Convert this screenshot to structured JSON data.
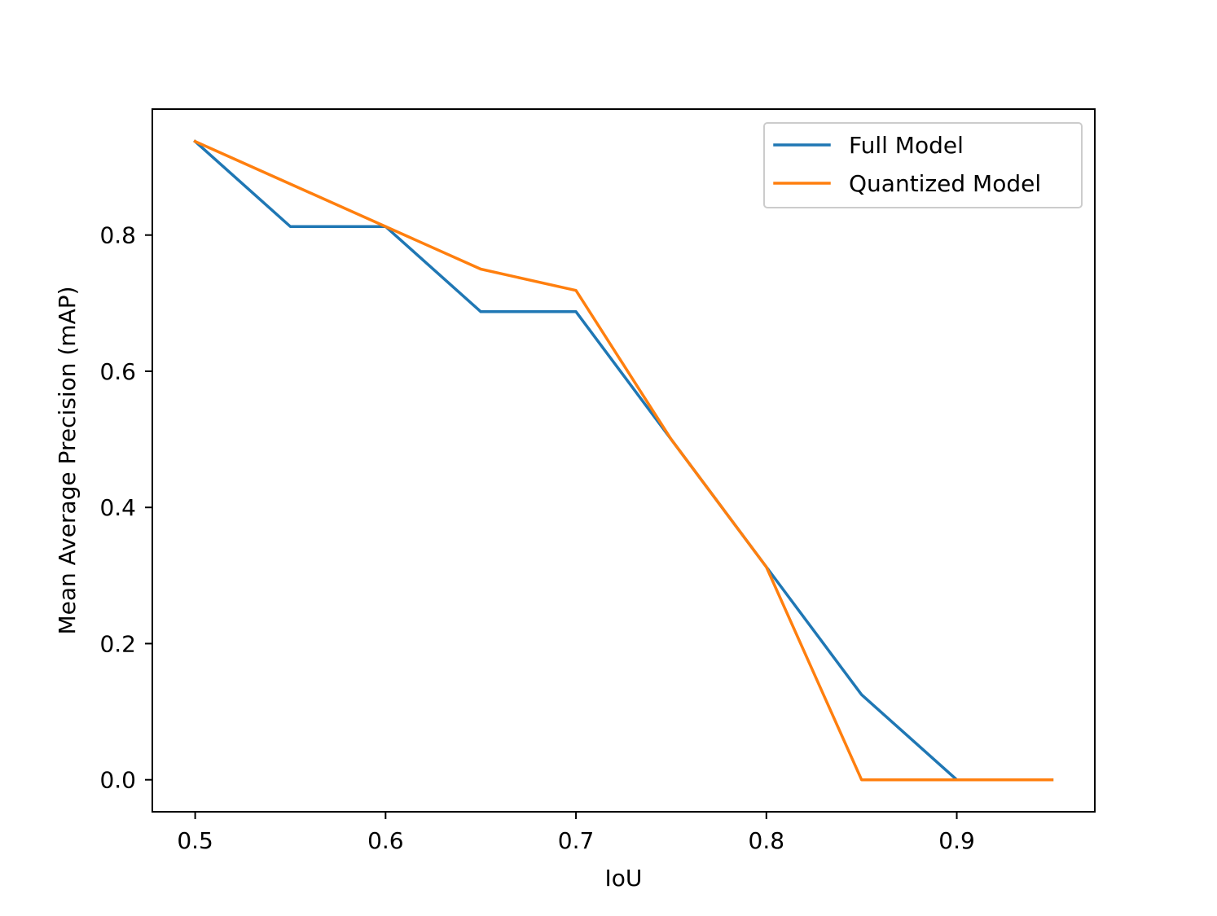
{
  "chart_data": {
    "type": "line",
    "title": "",
    "xlabel": "IoU",
    "ylabel": "Mean Average Precision (mAP)",
    "xlim": [
      0.4775,
      0.9725
    ],
    "ylim": [
      -0.047,
      0.985
    ],
    "xticks": [
      0.5,
      0.6,
      0.7,
      0.8,
      0.9
    ],
    "xtick_labels": [
      "0.5",
      "0.6",
      "0.7",
      "0.8",
      "0.9"
    ],
    "yticks": [
      0.0,
      0.2,
      0.4,
      0.6,
      0.8
    ],
    "ytick_labels": [
      "0.0",
      "0.2",
      "0.4",
      "0.6",
      "0.8"
    ],
    "grid": false,
    "legend_position": "top-right",
    "x": [
      0.5,
      0.55,
      0.6,
      0.65,
      0.7,
      0.75,
      0.8,
      0.85,
      0.9,
      0.95
    ],
    "series": [
      {
        "name": "Full Model",
        "color": "#1f77b4",
        "values": [
          0.9375,
          0.8125,
          0.8125,
          0.6875,
          0.6875,
          0.5,
          0.3125,
          0.125,
          0.0,
          0.0
        ]
      },
      {
        "name": "Quantized Model",
        "color": "#ff7f0e",
        "values": [
          0.9375,
          0.875,
          0.8125,
          0.75,
          0.71875,
          0.5,
          0.3125,
          0.0,
          0.0,
          0.0
        ]
      }
    ]
  }
}
